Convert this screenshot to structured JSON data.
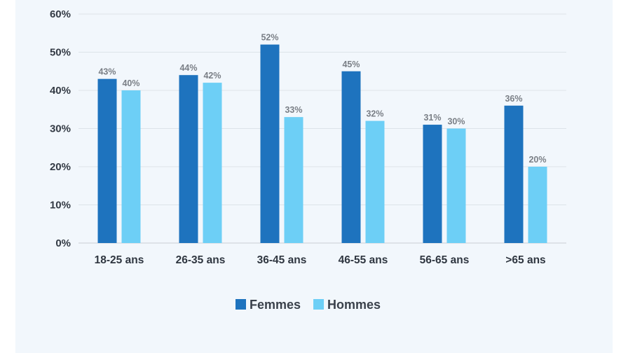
{
  "chart_data": {
    "type": "bar",
    "categories": [
      "18-25 ans",
      "26-35 ans",
      "36-45 ans",
      "46-55 ans",
      "56-65 ans",
      ">65 ans"
    ],
    "series": [
      {
        "name": "Femmes",
        "color": "#1e73be",
        "values": [
          43,
          44,
          52,
          45,
          31,
          36
        ]
      },
      {
        "name": "Hommes",
        "color": "#6dcff6",
        "values": [
          40,
          42,
          33,
          32,
          30,
          20
        ]
      }
    ],
    "y_ticks": [
      "0%",
      "10%",
      "20%",
      "30%",
      "40%",
      "50%",
      "60%"
    ],
    "ylim": [
      0,
      60
    ],
    "unit_suffix": "%",
    "grid": true,
    "legend_position": "bottom-center"
  }
}
